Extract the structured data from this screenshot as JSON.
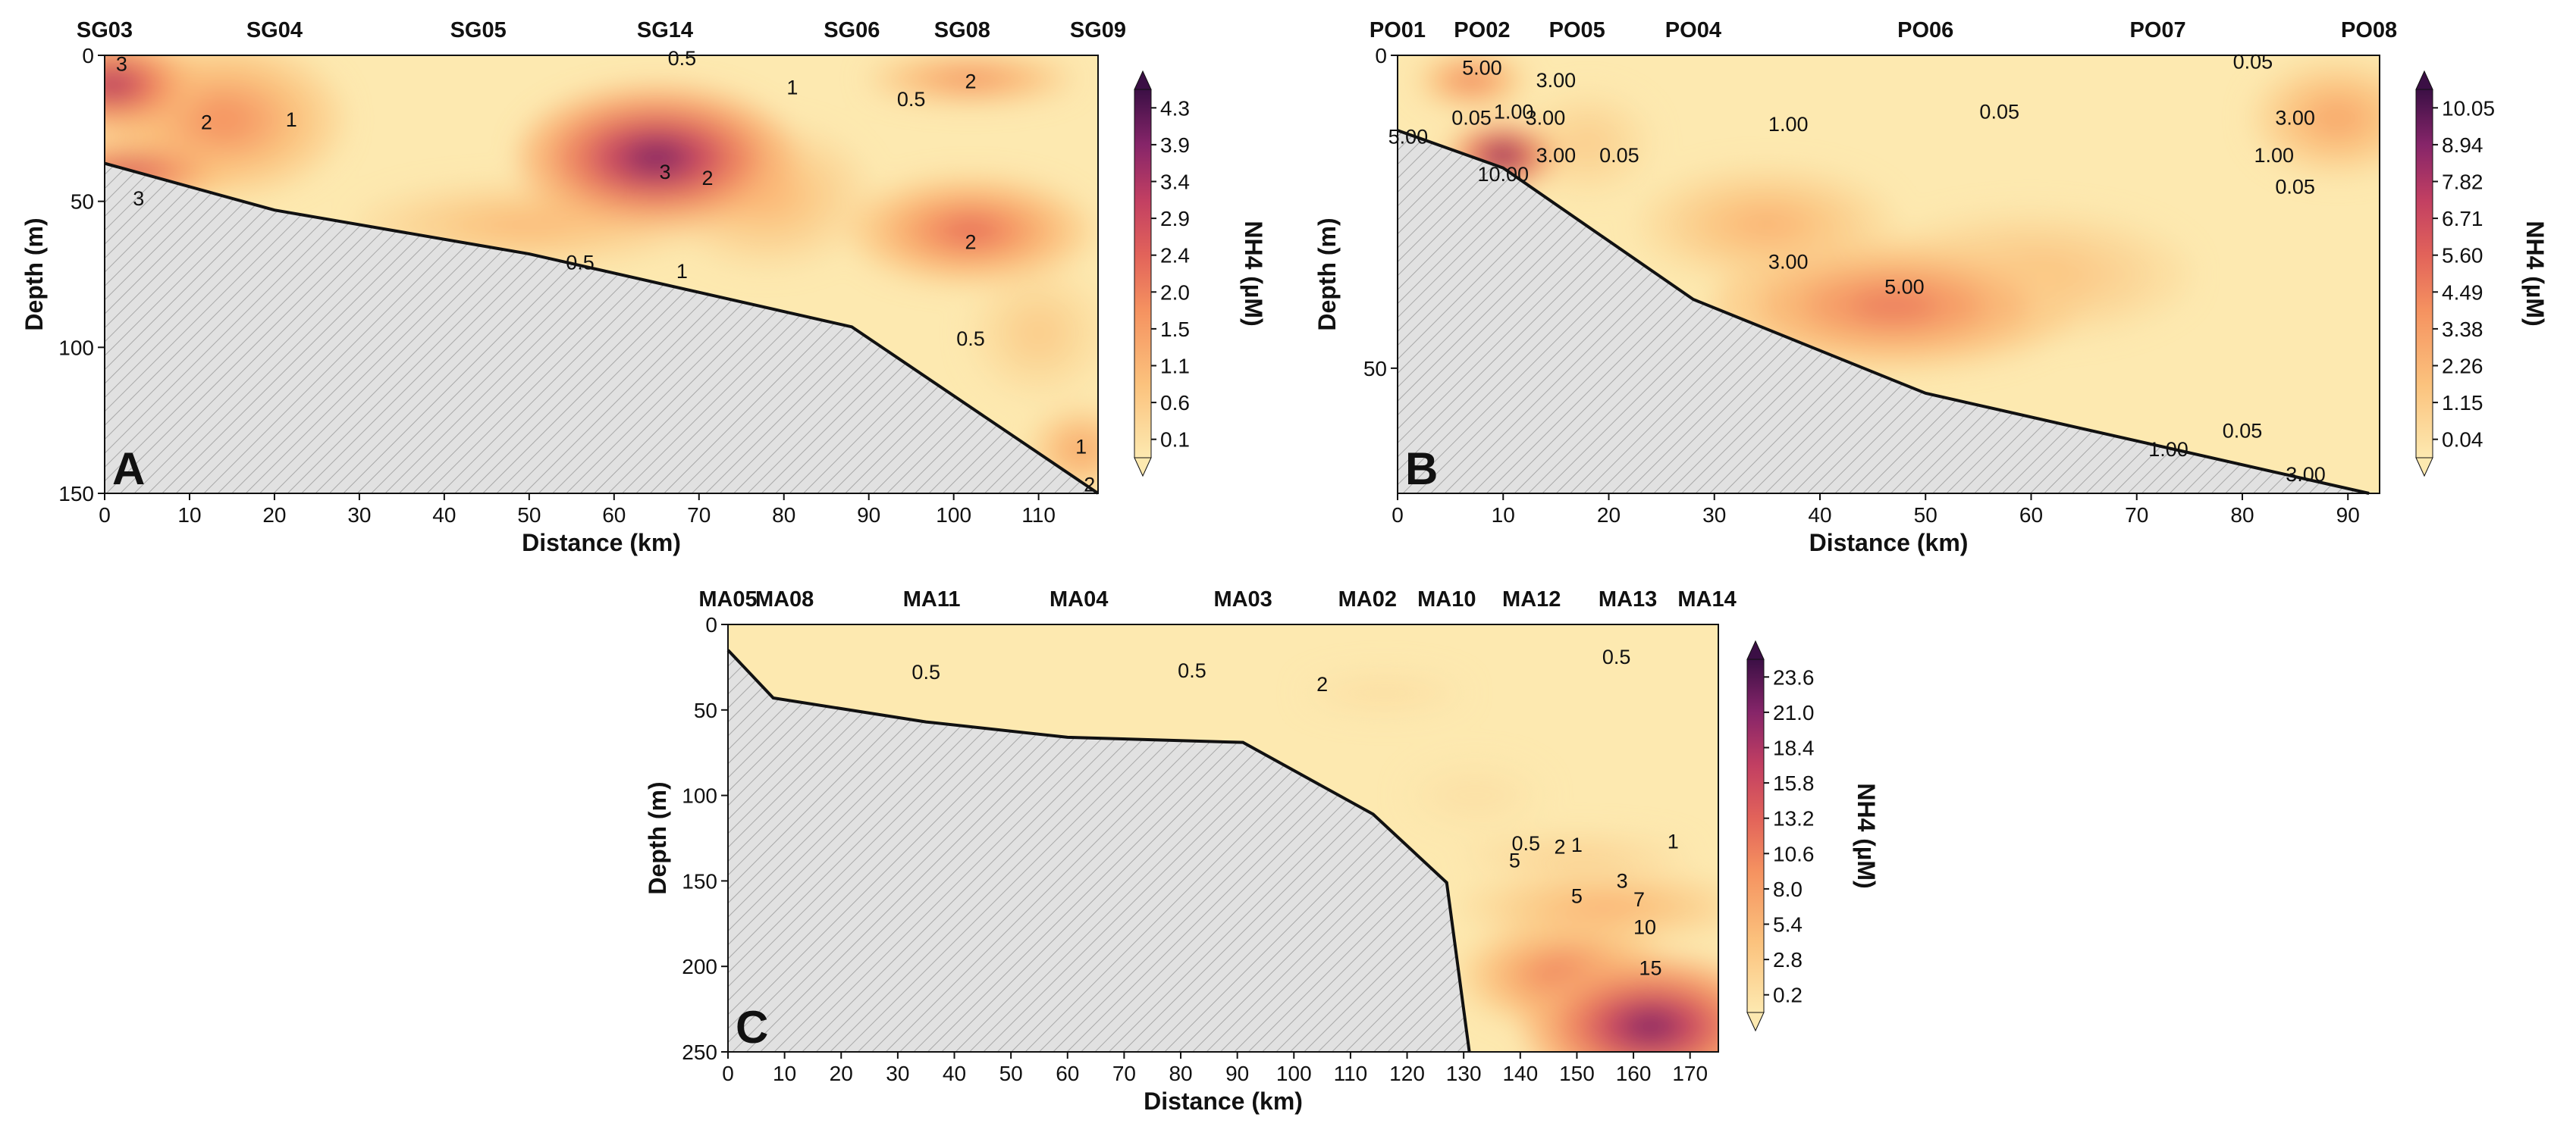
{
  "chart_data": [
    {
      "panel": "A",
      "type": "heatmap",
      "xlabel": "Distance (km)",
      "ylabel": "Depth (m)",
      "xlim": [
        0,
        117
      ],
      "ylim": [
        150,
        0
      ],
      "xticks": [
        0,
        10,
        20,
        30,
        40,
        50,
        60,
        70,
        80,
        90,
        100,
        110
      ],
      "yticks": [
        0,
        50,
        100,
        150
      ],
      "stations": [
        {
          "name": "SG03",
          "x": 0
        },
        {
          "name": "SG04",
          "x": 20
        },
        {
          "name": "SG05",
          "x": 44
        },
        {
          "name": "SG14",
          "x": 66
        },
        {
          "name": "SG06",
          "x": 88
        },
        {
          "name": "SG08",
          "x": 101
        },
        {
          "name": "SG09",
          "x": 117
        }
      ],
      "colorbar": {
        "label": "NH4 (µM)",
        "ticks": [
          "0.1",
          "0.6",
          "1.1",
          "1.5",
          "2.0",
          "2.4",
          "2.9",
          "3.4",
          "3.9",
          "4.3"
        ],
        "min": 0.1,
        "max": 4.3
      },
      "bottom_profile": [
        [
          0,
          37
        ],
        [
          20,
          53
        ],
        [
          50,
          68
        ],
        [
          88,
          93
        ],
        [
          117,
          150
        ]
      ],
      "blobs": [
        {
          "x": 65,
          "y": 35,
          "v": 4.6,
          "rx": 16,
          "ry": 24
        },
        {
          "x": 1,
          "y": 10,
          "v": 4.0,
          "rx": 10,
          "ry": 16
        },
        {
          "x": 3,
          "y": 40,
          "v": 3.4,
          "rx": 12,
          "ry": 10
        },
        {
          "x": 14,
          "y": 22,
          "v": 2.2,
          "rx": 14,
          "ry": 26
        },
        {
          "x": 102,
          "y": 60,
          "v": 2.8,
          "rx": 14,
          "ry": 18
        },
        {
          "x": 102,
          "y": 8,
          "v": 2.3,
          "rx": 12,
          "ry": 8
        },
        {
          "x": 78,
          "y": 48,
          "v": 1.3,
          "rx": 12,
          "ry": 24
        },
        {
          "x": 50,
          "y": 58,
          "v": 1.3,
          "rx": 20,
          "ry": 14
        },
        {
          "x": 115,
          "y": 135,
          "v": 1.8,
          "rx": 6,
          "ry": 14
        },
        {
          "x": 110,
          "y": 95,
          "v": 0.9,
          "rx": 8,
          "ry": 22
        }
      ],
      "contours": [
        {
          "x": 4,
          "y": 49,
          "label": "3"
        },
        {
          "x": 2,
          "y": 3,
          "label": "3"
        },
        {
          "x": 12,
          "y": 23,
          "label": "2"
        },
        {
          "x": 22,
          "y": 22,
          "label": "1"
        },
        {
          "x": 66,
          "y": 40,
          "label": "3"
        },
        {
          "x": 71,
          "y": 42,
          "label": "2"
        },
        {
          "x": 81,
          "y": 11,
          "label": "1"
        },
        {
          "x": 68,
          "y": 1,
          "label": "0.5"
        },
        {
          "x": 95,
          "y": 15,
          "label": "0.5"
        },
        {
          "x": 102,
          "y": 9,
          "label": "2"
        },
        {
          "x": 102,
          "y": 64,
          "label": "2"
        },
        {
          "x": 56,
          "y": 71,
          "label": "0.5"
        },
        {
          "x": 68,
          "y": 74,
          "label": "1"
        },
        {
          "x": 102,
          "y": 97,
          "label": "0.5"
        },
        {
          "x": 115,
          "y": 134,
          "label": "1"
        },
        {
          "x": 116,
          "y": 147,
          "label": "2"
        }
      ]
    },
    {
      "panel": "B",
      "type": "heatmap",
      "xlabel": "Distance (km)",
      "ylabel": "Depth (m)",
      "xlim": [
        0,
        93
      ],
      "ylim": [
        70,
        0
      ],
      "xticks": [
        0,
        10,
        20,
        30,
        40,
        50,
        60,
        70,
        80,
        90
      ],
      "yticks": [
        0,
        50
      ],
      "stations": [
        {
          "name": "PO01",
          "x": 0
        },
        {
          "name": "PO02",
          "x": 8
        },
        {
          "name": "PO05",
          "x": 17
        },
        {
          "name": "PO04",
          "x": 28
        },
        {
          "name": "PO06",
          "x": 50
        },
        {
          "name": "PO07",
          "x": 72
        },
        {
          "name": "PO08",
          "x": 92
        }
      ],
      "colorbar": {
        "label": "NH4 (µM)",
        "ticks": [
          "0.04",
          "1.15",
          "2.26",
          "3.38",
          "4.49",
          "5.60",
          "6.71",
          "7.82",
          "8.94",
          "10.05"
        ],
        "min": 0.04,
        "max": 10.05
      },
      "bottom_profile": [
        [
          0,
          12
        ],
        [
          10,
          18
        ],
        [
          28,
          39
        ],
        [
          50,
          54
        ],
        [
          92,
          70
        ]
      ],
      "blobs": [
        {
          "x": 10,
          "y": 16,
          "v": 11.5,
          "rx": 5,
          "ry": 5
        },
        {
          "x": 7,
          "y": 4,
          "v": 6.0,
          "rx": 5,
          "ry": 4
        },
        {
          "x": 47,
          "y": 40,
          "v": 5.9,
          "rx": 17,
          "ry": 10
        },
        {
          "x": 35,
          "y": 27,
          "v": 3.2,
          "rx": 12,
          "ry": 9
        },
        {
          "x": 89,
          "y": 10,
          "v": 4.0,
          "rx": 8,
          "ry": 9
        },
        {
          "x": 18,
          "y": 14,
          "v": 1.8,
          "rx": 6,
          "ry": 8
        },
        {
          "x": 60,
          "y": 35,
          "v": 2.5,
          "rx": 15,
          "ry": 10
        }
      ],
      "contours": [
        {
          "x": 8,
          "y": 2,
          "label": "5.00"
        },
        {
          "x": 15,
          "y": 4,
          "label": "3.00"
        },
        {
          "x": 14,
          "y": 10,
          "label": "3.00"
        },
        {
          "x": 11,
          "y": 9,
          "label": "1.00"
        },
        {
          "x": 7,
          "y": 10,
          "label": "0.05"
        },
        {
          "x": 1,
          "y": 13,
          "label": "5.00"
        },
        {
          "x": 10,
          "y": 19,
          "label": "10.00"
        },
        {
          "x": 15,
          "y": 16,
          "label": "3.00"
        },
        {
          "x": 21,
          "y": 16,
          "label": "0.05"
        },
        {
          "x": 37,
          "y": 11,
          "label": "1.00"
        },
        {
          "x": 57,
          "y": 9,
          "label": "0.05"
        },
        {
          "x": 81,
          "y": 1,
          "label": "0.05"
        },
        {
          "x": 85,
          "y": 10,
          "label": "3.00"
        },
        {
          "x": 83,
          "y": 16,
          "label": "1.00"
        },
        {
          "x": 85,
          "y": 21,
          "label": "0.05"
        },
        {
          "x": 37,
          "y": 33,
          "label": "3.00"
        },
        {
          "x": 48,
          "y": 37,
          "label": "5.00"
        },
        {
          "x": 80,
          "y": 60,
          "label": "0.05"
        },
        {
          "x": 73,
          "y": 63,
          "label": "1.00"
        },
        {
          "x": 86,
          "y": 67,
          "label": "3.00"
        }
      ]
    },
    {
      "panel": "C",
      "type": "heatmap",
      "xlabel": "Distance (km)",
      "ylabel": "Depth (m)",
      "xlim": [
        0,
        175
      ],
      "ylim": [
        250,
        0
      ],
      "xticks": [
        0,
        10,
        20,
        30,
        40,
        50,
        60,
        70,
        80,
        90,
        100,
        110,
        120,
        130,
        140,
        150,
        160,
        170
      ],
      "yticks": [
        0,
        50,
        100,
        150,
        200,
        250
      ],
      "stations": [
        {
          "name": "MA05",
          "x": 0
        },
        {
          "name": "MA08",
          "x": 10
        },
        {
          "name": "MA11",
          "x": 36
        },
        {
          "name": "MA04",
          "x": 62
        },
        {
          "name": "MA03",
          "x": 91
        },
        {
          "name": "MA02",
          "x": 113
        },
        {
          "name": "MA10",
          "x": 127
        },
        {
          "name": "MA12",
          "x": 142
        },
        {
          "name": "MA13",
          "x": 159
        },
        {
          "name": "MA14",
          "x": 173
        }
      ],
      "colorbar": {
        "label": "NH4 (µM)",
        "ticks": [
          "0.2",
          "2.8",
          "5.4",
          "8.0",
          "10.6",
          "13.2",
          "15.8",
          "18.4",
          "21.0",
          "23.6"
        ],
        "min": 0.2,
        "max": 23.6
      },
      "bottom_profile": [
        [
          0,
          15
        ],
        [
          8,
          43
        ],
        [
          35,
          57
        ],
        [
          60,
          66
        ],
        [
          91,
          69
        ],
        [
          114,
          111
        ],
        [
          127,
          151
        ],
        [
          131,
          250
        ]
      ],
      "blobs": [
        {
          "x": 163,
          "y": 235,
          "v": 25.0,
          "rx": 22,
          "ry": 40
        },
        {
          "x": 148,
          "y": 205,
          "v": 14.0,
          "rx": 18,
          "ry": 30
        },
        {
          "x": 155,
          "y": 165,
          "v": 8.0,
          "rx": 25,
          "ry": 20
        },
        {
          "x": 150,
          "y": 135,
          "v": 4.0,
          "rx": 20,
          "ry": 12
        },
        {
          "x": 116,
          "y": 40,
          "v": 2.0,
          "rx": 14,
          "ry": 12
        },
        {
          "x": 132,
          "y": 100,
          "v": 1.5,
          "rx": 12,
          "ry": 20
        }
      ],
      "contours": [
        {
          "x": 35,
          "y": 28,
          "label": "0.5"
        },
        {
          "x": 82,
          "y": 27,
          "label": "0.5"
        },
        {
          "x": 105,
          "y": 35,
          "label": "2"
        },
        {
          "x": 157,
          "y": 19,
          "label": "0.5"
        },
        {
          "x": 141,
          "y": 128,
          "label": "0.5"
        },
        {
          "x": 147,
          "y": 130,
          "label": "2"
        },
        {
          "x": 150,
          "y": 129,
          "label": "1"
        },
        {
          "x": 167,
          "y": 127,
          "label": "1"
        },
        {
          "x": 139,
          "y": 138,
          "label": "5"
        },
        {
          "x": 158,
          "y": 150,
          "label": "3"
        },
        {
          "x": 150,
          "y": 159,
          "label": "5"
        },
        {
          "x": 161,
          "y": 161,
          "label": "7"
        },
        {
          "x": 162,
          "y": 177,
          "label": "10"
        },
        {
          "x": 163,
          "y": 201,
          "label": "15"
        }
      ]
    }
  ],
  "colors": {
    "low": "#fde9b0",
    "mid": "#f47e50",
    "high": "#3b0f45",
    "seabed_fill": "#e1e1e1",
    "seabed_hatch": "#a8a8a8"
  }
}
